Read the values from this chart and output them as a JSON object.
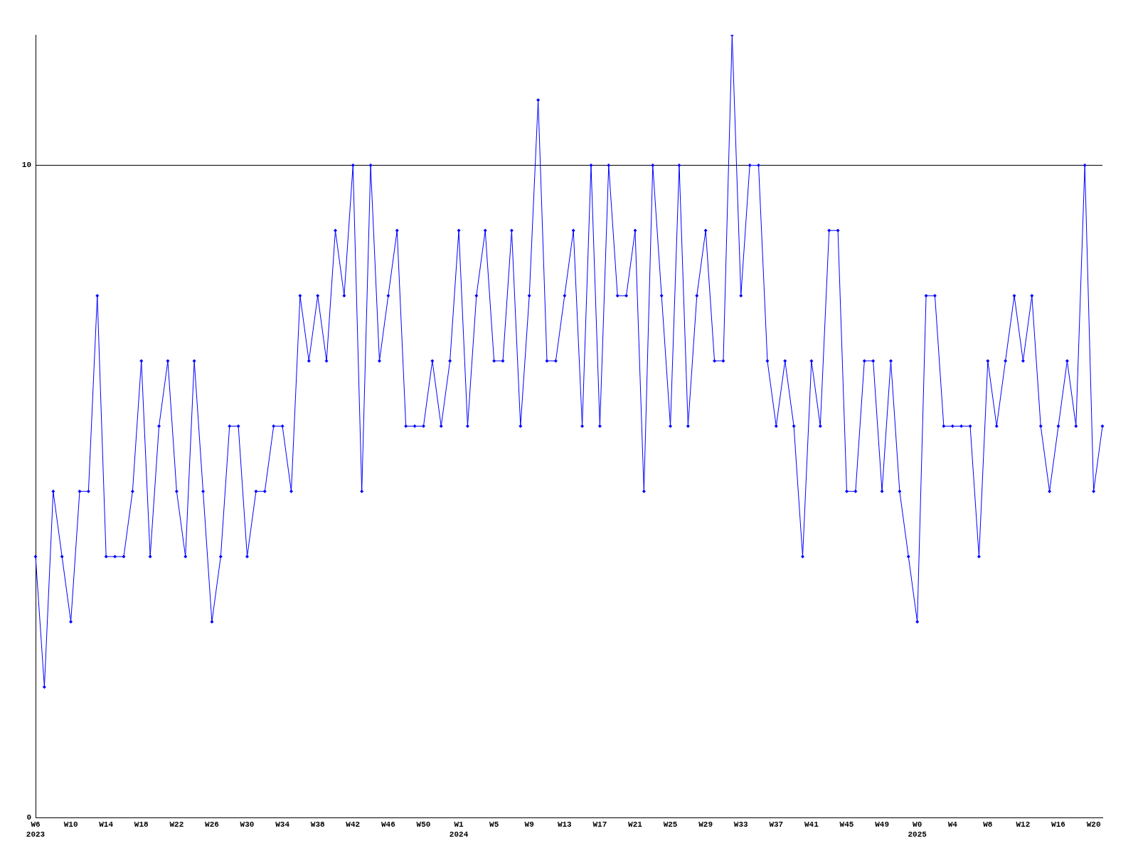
{
  "chart_data": {
    "type": "line",
    "categories": [
      "W6\n2023",
      null,
      null,
      null,
      "W10",
      null,
      null,
      null,
      "W14",
      null,
      null,
      null,
      "W18",
      null,
      null,
      null,
      "W22",
      null,
      null,
      null,
      "W26",
      null,
      null,
      null,
      "W30",
      null,
      null,
      null,
      "W34",
      null,
      null,
      null,
      "W38",
      null,
      null,
      null,
      "W42",
      null,
      null,
      null,
      "W46",
      null,
      null,
      null,
      "W50",
      null,
      null,
      null,
      "W1\n2024",
      null,
      null,
      null,
      "W5",
      null,
      null,
      null,
      "W9",
      null,
      null,
      null,
      "W13",
      null,
      null,
      null,
      "W17",
      null,
      null,
      null,
      "W21",
      null,
      null,
      null,
      "W25",
      null,
      null,
      null,
      "W29",
      null,
      null,
      null,
      "W33",
      null,
      null,
      null,
      "W37",
      null,
      null,
      null,
      "W41",
      null,
      null,
      null,
      "W45",
      null,
      null,
      null,
      "W49",
      null,
      null,
      null,
      "W0\n2025",
      null,
      null,
      null,
      "W4",
      null,
      null,
      null,
      "W8",
      null,
      null,
      null,
      "W12",
      null,
      null,
      null,
      "W16",
      null,
      null,
      null,
      "W20",
      null
    ],
    "series": [
      {
        "color": "#0000ff",
        "values": [
          4,
          2,
          5,
          4,
          3,
          5,
          5,
          8,
          4,
          4,
          4,
          5,
          7,
          4,
          6,
          7,
          5,
          4,
          7,
          5,
          3,
          4,
          6,
          6,
          4,
          5,
          5,
          6,
          6,
          5,
          8,
          7,
          8,
          7,
          9,
          8,
          10,
          5,
          10,
          7,
          8,
          9,
          6,
          6,
          6,
          7,
          6,
          7,
          9,
          6,
          8,
          9,
          7,
          7,
          9,
          6,
          8,
          11,
          7,
          7,
          8,
          9,
          6,
          10,
          6,
          10,
          8,
          8,
          9,
          5,
          10,
          8,
          6,
          10,
          6,
          8,
          9,
          7,
          7,
          12,
          8,
          10,
          10,
          7,
          6,
          7,
          6,
          4,
          7,
          6,
          9,
          9,
          5,
          5,
          7,
          7,
          5,
          7,
          5,
          4,
          3,
          8,
          8,
          6,
          6,
          6,
          6,
          4,
          7,
          6,
          7,
          8,
          7,
          8,
          6,
          5,
          6,
          7,
          6,
          10,
          5,
          6
        ]
      }
    ],
    "ylim": [
      0,
      12
    ],
    "yticks": [
      0,
      10
    ],
    "grid": "y",
    "marker": "diamond",
    "line_style": "solid",
    "legend": false
  }
}
